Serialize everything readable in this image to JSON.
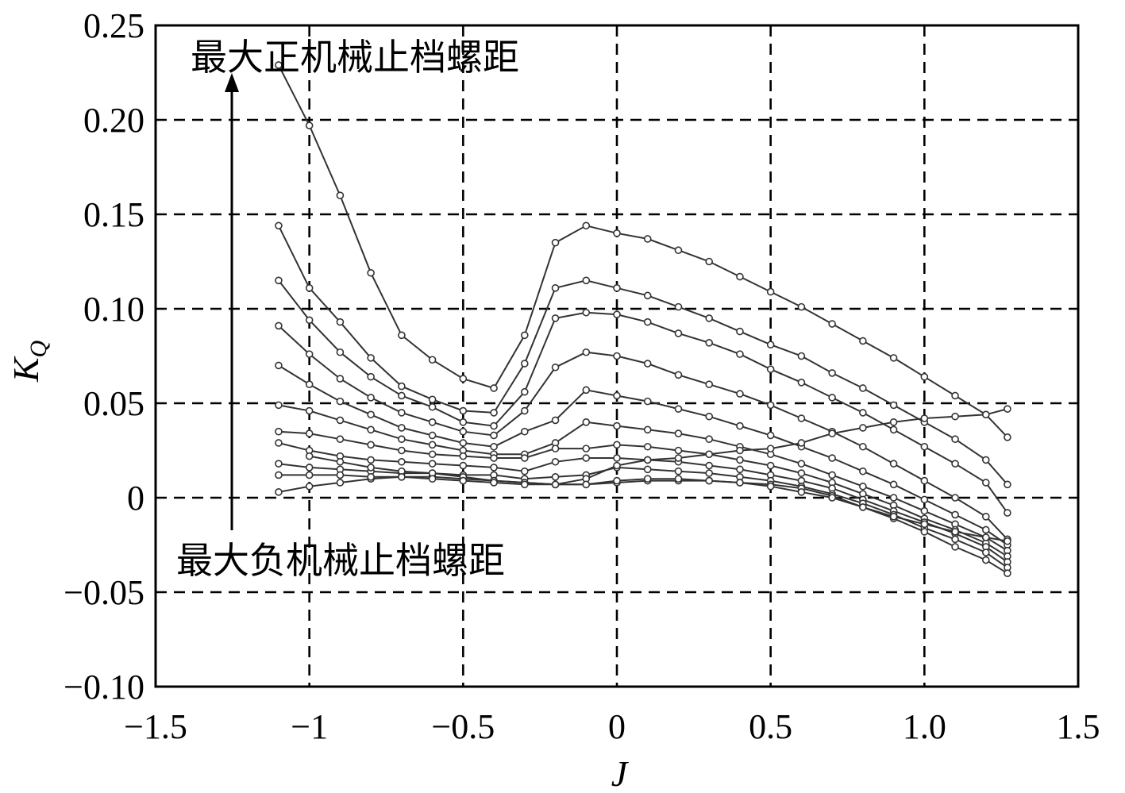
{
  "chart_data": {
    "type": "line",
    "xlabel": "J",
    "ylabel": "K",
    "ylabel_sub": "Q",
    "xlim": [
      -1.5,
      1.5
    ],
    "ylim": [
      -0.1,
      0.25
    ],
    "grid": true,
    "x_ticks": [
      -1.5,
      -1,
      -0.5,
      0,
      0.5,
      1.0,
      1.5
    ],
    "x_tick_labels": [
      "−1.5",
      "−1",
      "−0.5",
      "0",
      "0.5",
      "1.0",
      "1.5"
    ],
    "y_ticks": [
      0.25,
      0.2,
      0.15,
      0.1,
      0.05,
      0,
      -0.05,
      -0.1
    ],
    "y_tick_labels": [
      "0.25",
      "0.20",
      "0.15",
      "0.10",
      "0.05",
      "0",
      "−0.05",
      "−0.10"
    ],
    "annotations": [
      {
        "text": "最大正机械止档螺距"
      },
      {
        "text": "最大负机械止档螺距"
      }
    ],
    "series": [
      {
        "x": [
          -1.1,
          -1.0,
          -0.9,
          -0.8,
          -0.7,
          -0.6,
          -0.5,
          -0.4,
          -0.3,
          -0.2,
          -0.1,
          0.0,
          0.1,
          0.2,
          0.3,
          0.4,
          0.5,
          0.6,
          0.7,
          0.8,
          0.9,
          1.0,
          1.1,
          1.2,
          1.27
        ],
        "values": [
          0.229,
          0.197,
          0.16,
          0.119,
          0.086,
          0.073,
          0.063,
          0.058,
          0.086,
          0.135,
          0.144,
          0.14,
          0.137,
          0.131,
          0.125,
          0.117,
          0.109,
          0.101,
          0.092,
          0.083,
          0.074,
          0.064,
          0.054,
          0.044,
          0.032
        ]
      },
      {
        "x": [
          -1.1,
          -1.0,
          -0.9,
          -0.8,
          -0.7,
          -0.6,
          -0.5,
          -0.4,
          -0.3,
          -0.2,
          -0.1,
          0.0,
          0.1,
          0.2,
          0.3,
          0.4,
          0.5,
          0.6,
          0.7,
          0.8,
          0.9,
          1.0,
          1.1,
          1.2,
          1.27
        ],
        "values": [
          0.144,
          0.111,
          0.093,
          0.074,
          0.059,
          0.052,
          0.046,
          0.045,
          0.071,
          0.111,
          0.115,
          0.111,
          0.107,
          0.101,
          0.095,
          0.088,
          0.081,
          0.075,
          0.066,
          0.058,
          0.049,
          0.04,
          0.031,
          0.02,
          0.007
        ]
      },
      {
        "x": [
          -1.1,
          -1.0,
          -0.9,
          -0.8,
          -0.7,
          -0.6,
          -0.5,
          -0.4,
          -0.3,
          -0.2,
          -0.1,
          0.0,
          0.1,
          0.2,
          0.3,
          0.4,
          0.5,
          0.6,
          0.7,
          0.8,
          0.9,
          1.0,
          1.1,
          1.2,
          1.27
        ],
        "values": [
          0.115,
          0.094,
          0.077,
          0.064,
          0.054,
          0.048,
          0.04,
          0.038,
          0.056,
          0.095,
          0.098,
          0.097,
          0.093,
          0.087,
          0.082,
          0.076,
          0.068,
          0.061,
          0.053,
          0.045,
          0.036,
          0.027,
          0.018,
          0.008,
          -0.008
        ]
      },
      {
        "x": [
          -1.1,
          -1.0,
          -0.9,
          -0.8,
          -0.7,
          -0.6,
          -0.5,
          -0.4,
          -0.3,
          -0.2,
          -0.1,
          0.0,
          0.1,
          0.2,
          0.3,
          0.4,
          0.5,
          0.6,
          0.7,
          0.8,
          0.9,
          1.0,
          1.1,
          1.2,
          1.27
        ],
        "values": [
          0.091,
          0.076,
          0.063,
          0.053,
          0.045,
          0.04,
          0.035,
          0.033,
          0.046,
          0.069,
          0.077,
          0.075,
          0.071,
          0.065,
          0.06,
          0.055,
          0.049,
          0.042,
          0.035,
          0.027,
          0.018,
          0.009,
          0.0,
          -0.01,
          -0.022
        ]
      },
      {
        "x": [
          -1.1,
          -1.0,
          -0.9,
          -0.8,
          -0.7,
          -0.6,
          -0.5,
          -0.4,
          -0.3,
          -0.2,
          -0.1,
          0.0,
          0.1,
          0.2,
          0.3,
          0.4,
          0.5,
          0.6,
          0.7,
          0.8,
          0.9,
          1.0,
          1.1,
          1.2,
          1.27
        ],
        "values": [
          0.07,
          0.06,
          0.051,
          0.044,
          0.037,
          0.033,
          0.029,
          0.027,
          0.035,
          0.041,
          0.057,
          0.054,
          0.051,
          0.047,
          0.043,
          0.038,
          0.033,
          0.027,
          0.021,
          0.014,
          0.007,
          -0.001,
          -0.009,
          -0.017,
          -0.025
        ]
      },
      {
        "x": [
          -1.1,
          -1.0,
          -0.9,
          -0.8,
          -0.7,
          -0.6,
          -0.5,
          -0.4,
          -0.3,
          -0.2,
          -0.1,
          0.0,
          0.1,
          0.2,
          0.3,
          0.4,
          0.5,
          0.6,
          0.7,
          0.8,
          0.9,
          1.0,
          1.1,
          1.2,
          1.27
        ],
        "values": [
          0.049,
          0.046,
          0.041,
          0.036,
          0.031,
          0.028,
          0.025,
          0.023,
          0.023,
          0.029,
          0.04,
          0.038,
          0.036,
          0.034,
          0.031,
          0.027,
          0.023,
          0.018,
          0.012,
          0.006,
          0.0,
          -0.007,
          -0.014,
          -0.021,
          -0.028
        ]
      },
      {
        "x": [
          -1.1,
          -1.0,
          -0.9,
          -0.8,
          -0.7,
          -0.6,
          -0.5,
          -0.4,
          -0.3,
          -0.2,
          -0.1,
          0.0,
          0.1,
          0.2,
          0.3,
          0.4,
          0.5,
          0.6,
          0.7,
          0.8,
          0.9,
          1.0,
          1.1,
          1.2,
          1.27
        ],
        "values": [
          0.035,
          0.034,
          0.031,
          0.028,
          0.025,
          0.023,
          0.022,
          0.021,
          0.021,
          0.026,
          0.026,
          0.028,
          0.027,
          0.025,
          0.023,
          0.02,
          0.017,
          0.013,
          0.008,
          0.002,
          -0.004,
          -0.011,
          -0.017,
          -0.024,
          -0.031
        ]
      },
      {
        "x": [
          -1.1,
          -1.0,
          -0.9,
          -0.8,
          -0.7,
          -0.6,
          -0.5,
          -0.4,
          -0.3,
          -0.2,
          -0.1,
          0.0,
          0.1,
          0.2,
          0.3,
          0.4,
          0.5,
          0.6,
          0.7,
          0.8,
          0.9,
          1.0,
          1.1,
          1.2,
          1.27
        ],
        "values": [
          0.029,
          0.025,
          0.022,
          0.02,
          0.019,
          0.018,
          0.017,
          0.016,
          0.014,
          0.019,
          0.021,
          0.021,
          0.02,
          0.019,
          0.017,
          0.015,
          0.012,
          0.009,
          0.005,
          -0.001,
          -0.007,
          -0.013,
          -0.019,
          -0.026,
          -0.034
        ]
      },
      {
        "x": [
          -1.1,
          -1.0,
          -0.9,
          -0.8,
          -0.7,
          -0.6,
          -0.5,
          -0.4,
          -0.3,
          -0.2,
          -0.1,
          0.0,
          0.1,
          0.2,
          0.3,
          0.4,
          0.5,
          0.6,
          0.7,
          0.8,
          0.9,
          1.0,
          1.1,
          1.2,
          1.27
        ],
        "values": [
          0.018,
          0.016,
          0.015,
          0.014,
          0.013,
          0.013,
          0.012,
          0.012,
          0.01,
          0.011,
          0.012,
          0.016,
          0.015,
          0.014,
          0.013,
          0.011,
          0.009,
          0.006,
          0.002,
          -0.003,
          -0.009,
          -0.016,
          -0.022,
          -0.029,
          -0.037
        ]
      },
      {
        "x": [
          -1.1,
          -1.0,
          -0.9,
          -0.8,
          -0.7,
          -0.6,
          -0.5,
          -0.4,
          -0.3,
          -0.2,
          -0.1,
          0.0,
          0.1,
          0.2,
          0.3,
          0.4,
          0.5,
          0.6,
          0.7,
          0.8,
          0.9,
          1.0,
          1.1,
          1.2,
          1.27
        ],
        "values": [
          0.003,
          0.006,
          0.008,
          0.01,
          0.011,
          0.011,
          0.01,
          0.009,
          0.008,
          0.007,
          0.007,
          0.008,
          0.009,
          0.009,
          0.009,
          0.008,
          0.007,
          0.005,
          0.001,
          -0.005,
          -0.011,
          -0.018,
          -0.026,
          -0.033,
          -0.04
        ]
      },
      {
        "x": [
          -1.0,
          -0.9,
          -0.8,
          -0.7,
          -0.6,
          -0.5,
          -0.4,
          -0.3,
          -0.2,
          -0.1,
          0.0,
          0.1,
          0.2,
          0.3,
          0.4,
          0.5,
          0.6,
          0.7,
          0.8,
          0.9,
          1.0,
          1.1,
          1.2,
          1.27
        ],
        "values": [
          0.022,
          0.019,
          0.016,
          0.014,
          0.013,
          0.011,
          0.009,
          0.008,
          0.007,
          0.01,
          0.017,
          0.02,
          0.021,
          0.023,
          0.025,
          0.026,
          0.029,
          0.034,
          0.037,
          0.04,
          0.042,
          0.043,
          0.044,
          0.047
        ]
      },
      {
        "x": [
          -1.1,
          -1.0,
          -0.9,
          -0.8,
          -0.7,
          -0.6,
          -0.5,
          -0.4,
          -0.3,
          -0.2,
          -0.1,
          0.0,
          0.1,
          0.2,
          0.3,
          0.4,
          0.5,
          0.6,
          0.7,
          0.8,
          0.9,
          1.0,
          1.1,
          1.2,
          1.27
        ],
        "values": [
          0.012,
          0.012,
          0.012,
          0.011,
          0.011,
          0.01,
          0.009,
          0.008,
          0.007,
          0.007,
          0.007,
          0.009,
          0.01,
          0.01,
          0.009,
          0.008,
          0.006,
          0.003,
          0.0,
          -0.005,
          -0.01,
          -0.014,
          -0.018,
          -0.021,
          -0.023
        ]
      }
    ]
  }
}
